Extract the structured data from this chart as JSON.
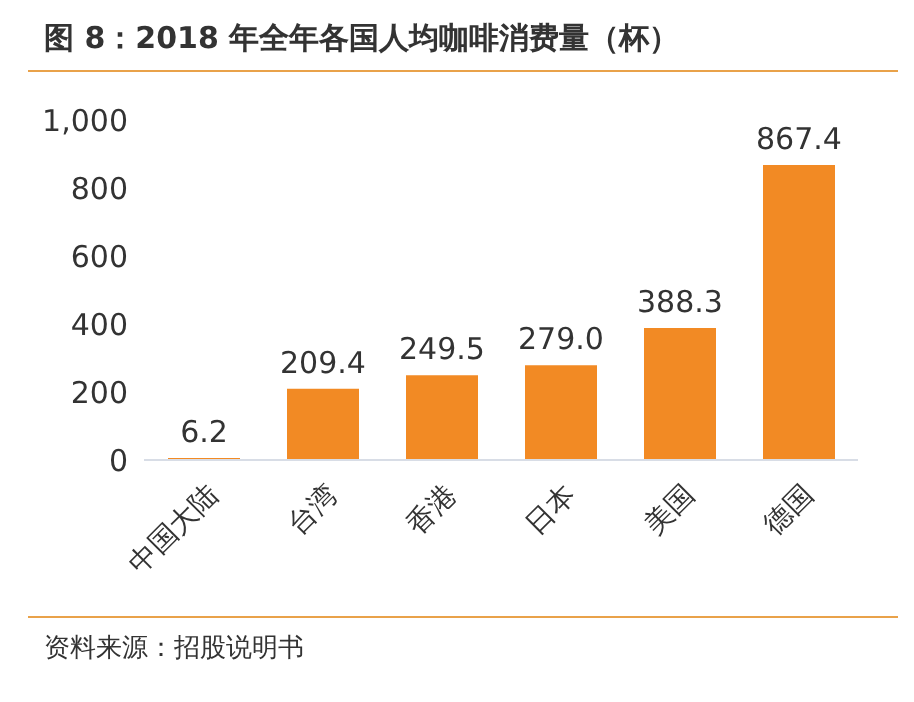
{
  "chart_data": {
    "type": "bar",
    "title": "图 8：2018 年全年各国人均咖啡消费量（杯）",
    "categories": [
      "中国大陆",
      "台湾",
      "香港",
      "日本",
      "美国",
      "德国"
    ],
    "values": [
      6.2,
      209.4,
      249.5,
      279.0,
      388.3,
      867.4
    ],
    "value_labels": [
      "6.2",
      "209.4",
      "249.5",
      "279.0",
      "388.3",
      "867.4"
    ],
    "color": "#f28a24",
    "ylim": [
      0,
      1000
    ],
    "yticks": [
      0,
      {
        "value": 200,
        "label": "200"
      },
      {
        "value": 400,
        "label": "400"
      },
      {
        "value": 600,
        "label": "600"
      },
      {
        "value": 800,
        "label": "800"
      },
      {
        "value": 1000,
        "label": "1,000"
      }
    ],
    "grid": false,
    "annotations": [
      "资料来源：招股说明书"
    ]
  }
}
